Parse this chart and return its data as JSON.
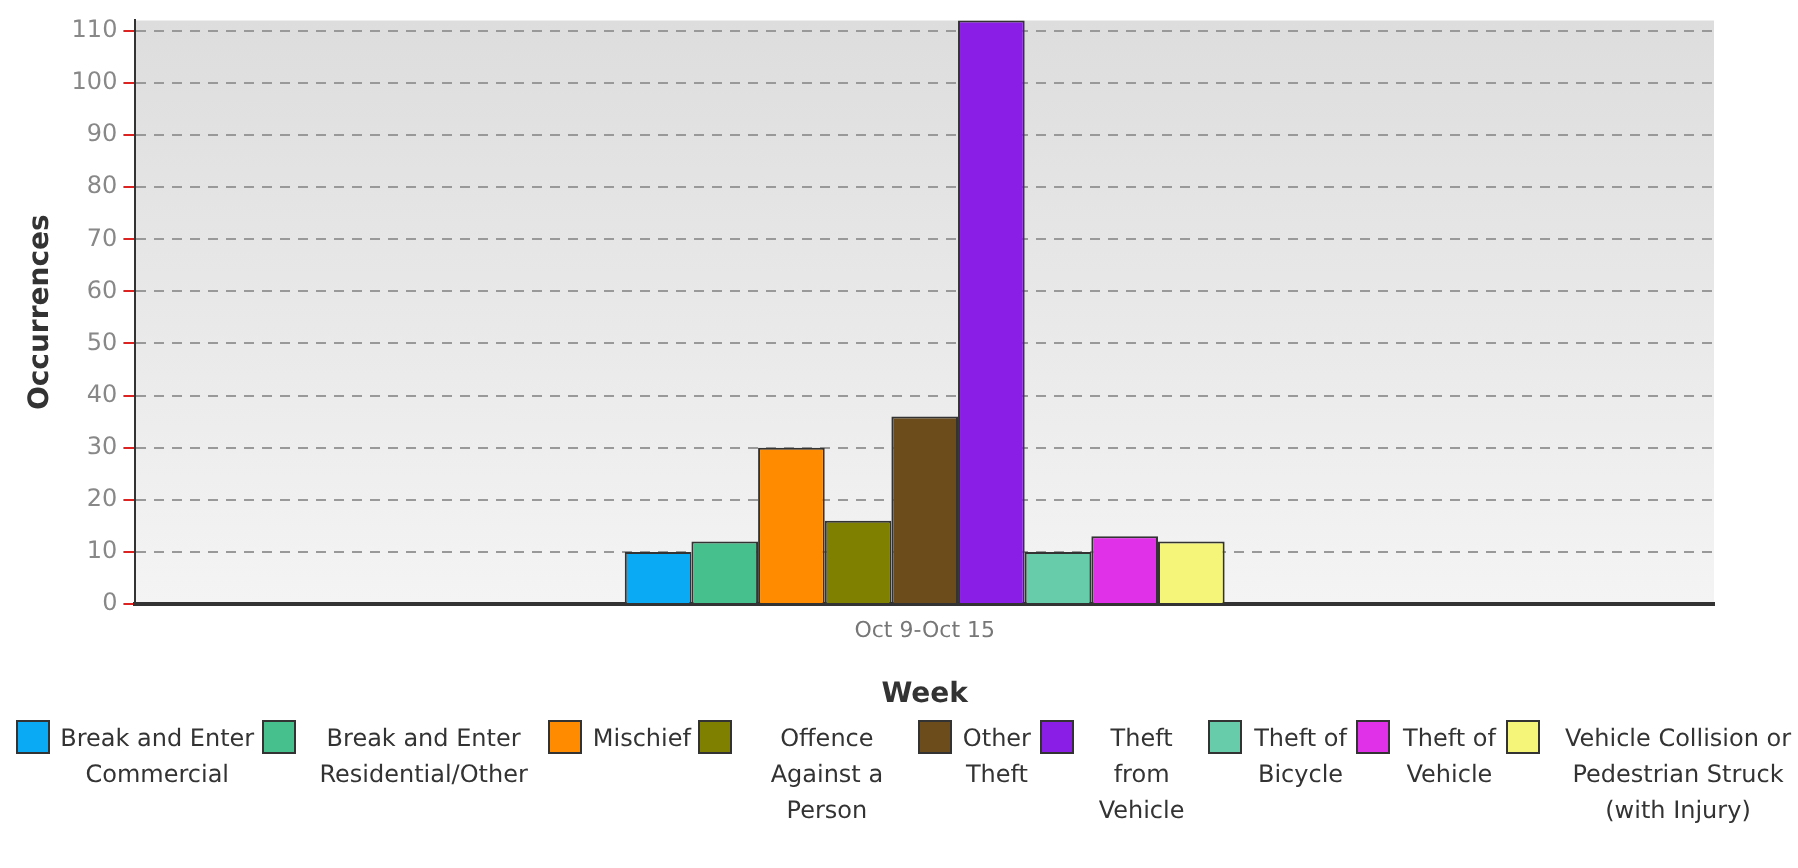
{
  "chart_data": {
    "type": "bar",
    "xlabel": "Week",
    "ylabel": "Occurrences",
    "categories": [
      "Oct 9-Oct 15"
    ],
    "series": [
      {
        "name": "Break and Enter Commercial",
        "color": "#0aaaf5",
        "values": [
          10
        ]
      },
      {
        "name": "Break and Enter Residential/Other",
        "color": "#46c08c",
        "values": [
          12
        ]
      },
      {
        "name": "Mischief",
        "color": "#ff8c00",
        "values": [
          30
        ]
      },
      {
        "name": "Offence Against a Person",
        "color": "#808000",
        "values": [
          16
        ]
      },
      {
        "name": "Other Theft",
        "color": "#6b4c1a",
        "values": [
          36
        ]
      },
      {
        "name": "Theft from Vehicle",
        "color": "#8a1ee6",
        "values": [
          112
        ]
      },
      {
        "name": "Theft of Bicycle",
        "color": "#66ccaa",
        "values": [
          10
        ]
      },
      {
        "name": "Theft of Vehicle",
        "color": "#e030e8",
        "values": [
          13
        ]
      },
      {
        "name": "Vehicle Collision or Pedestrian Struck (with Injury)",
        "color": "#f5f57a",
        "values": [
          12
        ]
      }
    ],
    "ylim": [
      0,
      112
    ],
    "yticks": [
      0,
      10,
      20,
      30,
      40,
      50,
      60,
      70,
      80,
      90,
      100,
      110
    ],
    "grid": "y",
    "legend": "bottom"
  }
}
